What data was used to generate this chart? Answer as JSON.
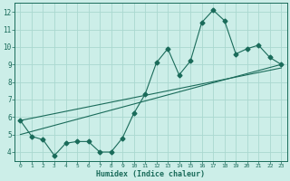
{
  "xlabel": "Humidex (Indice chaleur)",
  "ylabel": "",
  "bg_color": "#cceee8",
  "grid_color": "#aad8d0",
  "line_color": "#1a6b5a",
  "xlim": [
    -0.5,
    23.5
  ],
  "ylim": [
    3.5,
    12.5
  ],
  "xticks": [
    0,
    1,
    2,
    3,
    4,
    5,
    6,
    7,
    8,
    9,
    10,
    11,
    12,
    13,
    14,
    15,
    16,
    17,
    18,
    19,
    20,
    21,
    22,
    23
  ],
  "yticks": [
    4,
    5,
    6,
    7,
    8,
    9,
    10,
    11,
    12
  ],
  "line1_x": [
    0,
    1,
    2,
    3,
    4,
    5,
    6,
    7,
    8,
    9,
    10,
    11,
    12,
    13,
    14,
    15,
    16,
    17,
    18,
    19,
    20,
    21,
    22,
    23
  ],
  "line1_y": [
    5.8,
    4.9,
    4.7,
    3.8,
    4.5,
    4.6,
    4.6,
    4.0,
    4.0,
    4.8,
    6.2,
    7.3,
    9.1,
    9.9,
    8.4,
    9.2,
    11.4,
    12.1,
    11.5,
    9.6,
    9.9,
    10.1,
    9.4,
    9.0
  ],
  "line2_x": [
    0,
    23
  ],
  "line2_y": [
    5.0,
    9.0
  ],
  "line3_x": [
    0,
    23
  ],
  "line3_y": [
    5.8,
    8.8
  ],
  "marker_size": 2.5
}
